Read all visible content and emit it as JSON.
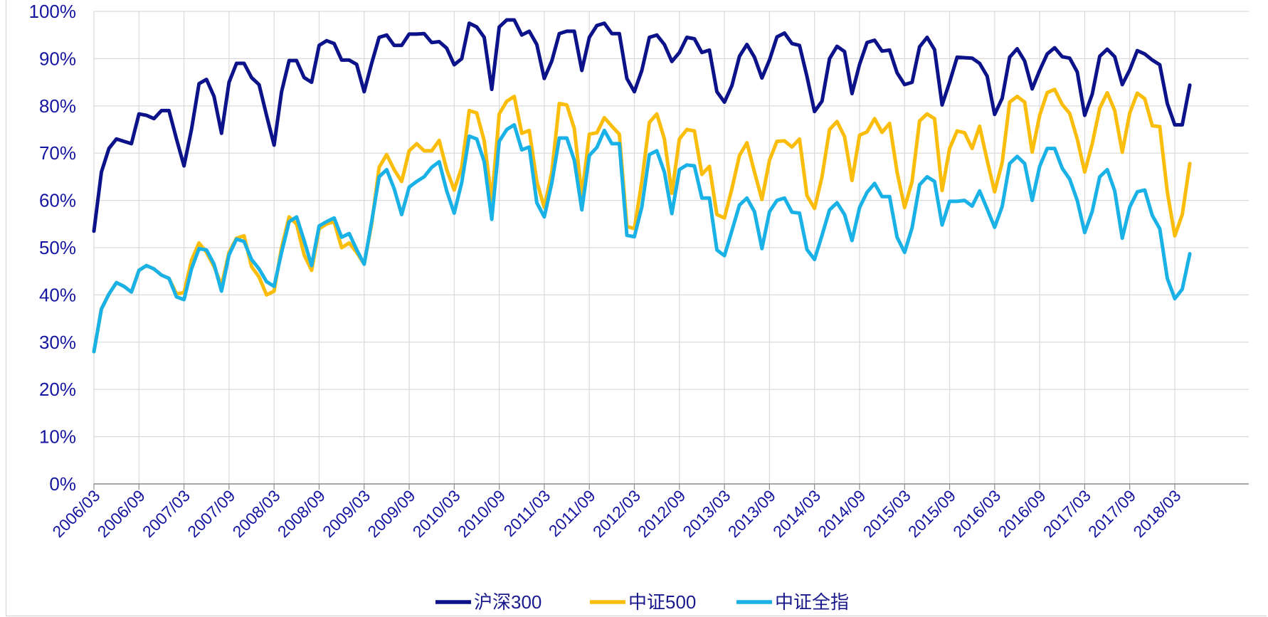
{
  "chart_data": {
    "type": "line",
    "title": "",
    "xlabel": "",
    "ylabel": "",
    "ylim": [
      0,
      100
    ],
    "y_ticks": [
      "0%",
      "10%",
      "20%",
      "30%",
      "40%",
      "50%",
      "60%",
      "70%",
      "80%",
      "90%",
      "100%"
    ],
    "x_ticks": [
      "2006/03",
      "2006/09",
      "2007/03",
      "2007/09",
      "2008/03",
      "2008/09",
      "2009/03",
      "2009/09",
      "2010/03",
      "2010/09",
      "2011/03",
      "2011/09",
      "2012/03",
      "2012/09",
      "2013/03",
      "2013/09",
      "2014/03",
      "2014/09",
      "2015/03",
      "2015/09",
      "2016/03",
      "2016/09",
      "2017/03",
      "2017/09",
      "2018/03"
    ],
    "x_start": "2006/03",
    "x_end": "2018/05",
    "grid": true,
    "legend_position": "bottom",
    "series": [
      {
        "name": "沪深300",
        "color": "#0c1289",
        "values": [
          53.5,
          66,
          71,
          73,
          72.5,
          72,
          78.3,
          78,
          77.3,
          79,
          79,
          73,
          67.3,
          75,
          84.7,
          85.6,
          82,
          74.2,
          85,
          89,
          89,
          86,
          84.5,
          78,
          71.7,
          83,
          89.6,
          89.6,
          86,
          85,
          92.8,
          93.8,
          93.2,
          89.7,
          89.7,
          88.8,
          83,
          89,
          94.5,
          95,
          92.8,
          92.8,
          95.2,
          95.2,
          95.3,
          93.4,
          93.6,
          92.2,
          88.7,
          90,
          97.5,
          96.7,
          94.5,
          83.5,
          96.7,
          98.2,
          98.2,
          95,
          95.8,
          93,
          85.8,
          89.5,
          95.3,
          95.8,
          95.8,
          87.5,
          94.5,
          97,
          97.5,
          95.3,
          95.3,
          85.8,
          83,
          87.5,
          94.5,
          95,
          93,
          89.4,
          91.3,
          94.5,
          94.2,
          91.3,
          91.8,
          83,
          80.8,
          84.3,
          90.5,
          93,
          90.3,
          85.9,
          89.7,
          94.6,
          95.4,
          93.2,
          92.8,
          86.2,
          78.8,
          81,
          90,
          92.6,
          91.5,
          82.6,
          88.8,
          93.4,
          93.9,
          91.6,
          91.8,
          87,
          84.5,
          85,
          92.5,
          94.5,
          91.9,
          80.2,
          85,
          90.3,
          90.2,
          90.1,
          89,
          86.3,
          78.2,
          81.6,
          90.3,
          92.1,
          89.5,
          83.6,
          87.5,
          91,
          92.3,
          90.4,
          90.1,
          87.2,
          78,
          82.5,
          90.5,
          92,
          90.4,
          84.5,
          87.6,
          91.7,
          91,
          89.7,
          88.7,
          80.5,
          76,
          76,
          84.4
        ]
      },
      {
        "name": "中证500",
        "color": "#fbbd0b",
        "values": [
          28,
          37,
          40.2,
          42.6,
          41.8,
          40.6,
          45.2,
          46.2,
          45.5,
          44.2,
          43.5,
          40.2,
          40.5,
          47.3,
          51,
          49,
          46,
          42,
          49,
          52,
          52.5,
          46,
          43.8,
          40,
          40.8,
          50,
          56.5,
          55,
          48.5,
          45.2,
          54,
          55,
          55.5,
          50,
          51,
          49,
          46.5,
          55,
          67,
          69.7,
          66.5,
          64,
          70.5,
          72,
          70.5,
          70.5,
          72.7,
          66.5,
          62.2,
          67,
          79,
          78.5,
          72.6,
          60,
          78.3,
          81,
          82,
          74.2,
          74.8,
          64,
          58.5,
          66,
          80.5,
          80.2,
          75.2,
          61,
          74,
          74.3,
          77.5,
          75.7,
          74,
          54.5,
          54,
          64,
          76.5,
          78.3,
          73,
          61.5,
          73,
          75,
          74.7,
          65.5,
          67.2,
          57,
          56.3,
          62.5,
          69.5,
          72.2,
          66,
          60.2,
          68.5,
          72.5,
          72.6,
          71.3,
          73,
          61,
          58.3,
          65,
          75,
          76.7,
          73.5,
          64.2,
          73.8,
          74.5,
          77.3,
          74.4,
          76.3,
          66,
          58.5,
          64,
          76.8,
          78.3,
          77.3,
          62.1,
          71,
          74.7,
          74.3,
          71,
          75.7,
          68.5,
          61.8,
          68,
          80.8,
          82,
          80.8,
          70.2,
          78,
          82.8,
          83.5,
          80.3,
          78.4,
          73,
          66,
          72,
          79.5,
          82.8,
          79,
          70.2,
          78.5,
          82.7,
          81.5,
          75.8,
          75.6,
          61.8,
          52.5,
          57,
          67.8
        ]
      },
      {
        "name": "中证全指",
        "color": "#1ab2e6",
        "values": [
          28,
          37,
          40.2,
          42.6,
          41.8,
          40.6,
          45.2,
          46.2,
          45.5,
          44.2,
          43.5,
          39.6,
          39,
          45.5,
          49.8,
          49.5,
          46.5,
          40.8,
          48.5,
          51.8,
          51.3,
          47.5,
          45.5,
          42.8,
          41.8,
          49,
          55.5,
          56.5,
          51.5,
          46.2,
          54.6,
          55.5,
          56.3,
          52.2,
          53,
          49.6,
          46.5,
          55.5,
          65,
          66.5,
          62.5,
          57,
          62.8,
          64,
          65,
          67,
          68.2,
          62,
          57.3,
          63.8,
          73.6,
          73,
          68.2,
          56,
          72.5,
          75,
          76,
          70.7,
          71.3,
          59.5,
          56.5,
          63.7,
          73.2,
          73.2,
          68.5,
          58,
          69.5,
          71.2,
          74.8,
          72,
          72,
          52.6,
          52.3,
          58.6,
          69.7,
          70.5,
          66,
          57.2,
          66.5,
          67.5,
          67.3,
          60.5,
          60.5,
          49.5,
          48.3,
          53.6,
          59,
          60.5,
          57.6,
          49.8,
          57.6,
          60,
          60.5,
          57.5,
          57.3,
          49.6,
          47.5,
          52.6,
          58,
          59.5,
          57,
          51.5,
          58.5,
          61.7,
          63.6,
          60.8,
          60.8,
          52.2,
          49,
          54.2,
          63.3,
          65,
          64,
          54.8,
          59.8,
          59.8,
          60,
          58.8,
          62,
          58.2,
          54.3,
          58.7,
          67.8,
          69.3,
          67.8,
          60,
          67.2,
          71,
          71,
          66.8,
          64.5,
          60,
          53.2,
          57.7,
          65,
          66.5,
          62,
          52,
          58.6,
          61.8,
          62.2,
          56.8,
          54,
          43.5,
          39.2,
          41.2,
          48.7
        ]
      }
    ]
  }
}
